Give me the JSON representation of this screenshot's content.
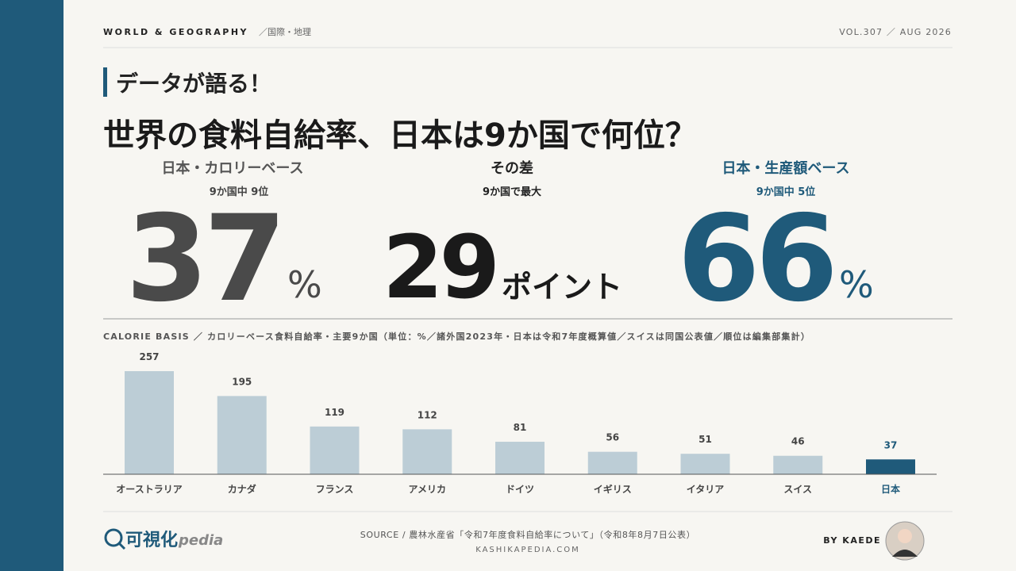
{
  "header": {
    "section": "WORLD & GEOGRAPHY",
    "subsection": "／国際・地理",
    "issue": "VOL.307 ／ AUG 2026"
  },
  "headline": {
    "kicker": "データが語る！",
    "title": "世界の食料自給率、日本は9か国で何位？"
  },
  "stats": [
    {
      "label": "日本・カロリーベース",
      "sub": "9か国中 9位",
      "number": 37,
      "unit": "%"
    },
    {
      "label": "その差",
      "sub": "9か国で最大",
      "number": 29,
      "unit": "ポイント"
    },
    {
      "label": "日本・生産額ベース",
      "sub": "9か国中 5位",
      "number": 66,
      "unit": "%"
    }
  ],
  "chart_data": {
    "type": "bar",
    "subtitle": "CALORIE BASIS ／ カロリーベース食料自給率・主要9か国（単位：%／諸外国2023年・日本は令和7年度概算値／スイスは同国公表値／順位は編集部集計）",
    "categories": [
      "オーストラリア",
      "カナダ",
      "フランス",
      "アメリカ",
      "ドイツ",
      "イギリス",
      "イタリア",
      "スイス",
      "日本"
    ],
    "values": [
      257,
      195,
      119,
      112,
      81,
      56,
      51,
      46,
      37
    ],
    "colors": [
      "#bccdd6",
      "#bccdd6",
      "#bccdd6",
      "#bccdd6",
      "#bccdd6",
      "#bccdd6",
      "#bccdd6",
      "#bccdd6",
      "#1f5a7a"
    ],
    "label_colors": [
      "#444444",
      "#444444",
      "#444444",
      "#444444",
      "#444444",
      "#444444",
      "#444444",
      "#444444",
      "#1f5a7a"
    ]
  },
  "footer": {
    "logo_main": "可視化",
    "logo_sub": "pedia",
    "source": "SOURCE / 農林水産省「令和7年度食料自給率について」（令和8年8月7日公表）",
    "site": "KASHIKAPEDIA.COM",
    "byline": "BY KAEDE"
  }
}
